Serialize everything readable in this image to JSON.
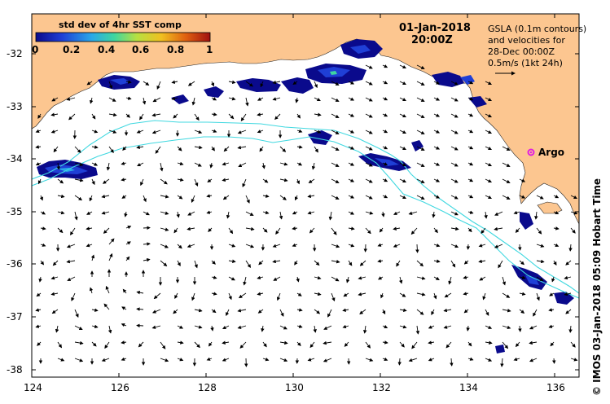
{
  "map": {
    "colorbar": {
      "title": "std dev of 4hr SST comp",
      "ticks": [
        "0",
        "0.2",
        "0.4",
        "0.6",
        "0.8",
        "1"
      ],
      "colors": [
        "#0a0a8c",
        "#1f3fd6",
        "#2aa8e8",
        "#3fd6a0",
        "#b8e040",
        "#f0c020",
        "#e06010",
        "#a01010"
      ]
    },
    "date": "01-Jan-2018",
    "time": "20:00Z",
    "legend_lines": [
      "GSLA (0.1m contours)",
      "and velocities for",
      "28-Dec 00:00Z",
      "0.5m/s (1kt 24h)"
    ],
    "argo_label": "Argo",
    "credit": "© IMOS 03-Jan-2018 05:09 Hobart Time",
    "y_ticks": [
      "-32",
      "-33",
      "-34",
      "-35",
      "-36",
      "-37",
      "-38"
    ],
    "x_ticks": [
      "124",
      "126",
      "128",
      "130",
      "132",
      "134",
      "136"
    ],
    "land_color": "#fcc690",
    "contour_color": "#40d8e0",
    "argo_color": "#e020e0"
  }
}
